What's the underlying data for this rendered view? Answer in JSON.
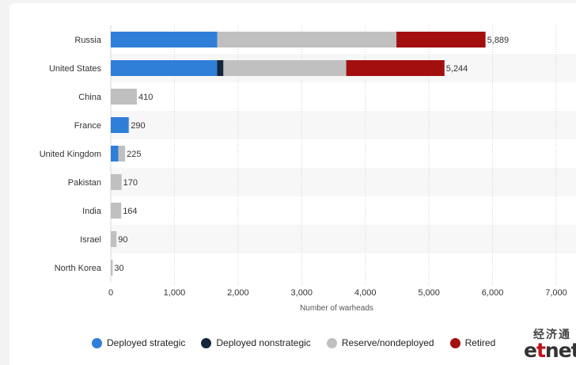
{
  "chart_data": {
    "type": "bar",
    "orientation": "horizontal",
    "stacked": true,
    "categories": [
      "Russia",
      "United States",
      "China",
      "France",
      "United Kingdom",
      "Pakistan",
      "India",
      "Israel",
      "North Korea"
    ],
    "series": [
      {
        "name": "Deployed strategic",
        "color": "#2f7ed8",
        "values": [
          1674,
          1670,
          0,
          280,
          120,
          0,
          0,
          0,
          0
        ]
      },
      {
        "name": "Deployed nonstrategic",
        "color": "#13263a",
        "values": [
          0,
          100,
          0,
          0,
          0,
          0,
          0,
          0,
          0
        ]
      },
      {
        "name": "Reserve/nondeployed",
        "color": "#c0c0c0",
        "values": [
          2815,
          1930,
          410,
          10,
          105,
          170,
          164,
          90,
          30
        ]
      },
      {
        "name": "Retired",
        "color": "#a30f0f",
        "values": [
          1400,
          1544,
          0,
          0,
          0,
          0,
          0,
          0,
          0
        ]
      }
    ],
    "totals_display": [
      "5,889",
      "5,244",
      "410",
      "290",
      "225",
      "170",
      "164",
      "90",
      "30"
    ],
    "xlabel": "Number of warheads",
    "ylabel": "",
    "xlim": [
      0,
      7000
    ],
    "x_ticks": [
      0,
      1000,
      2000,
      3000,
      4000,
      5000,
      6000,
      7000
    ],
    "x_tick_labels": [
      "0",
      "1,000",
      "2,000",
      "3,000",
      "4,000",
      "5,000",
      "6,000",
      "7,000"
    ],
    "grid": true,
    "legend_position": "bottom"
  },
  "legend": [
    {
      "label": "Deployed strategic",
      "color": "#2f7ed8"
    },
    {
      "label": "Deployed nonstrategic",
      "color": "#13263a"
    },
    {
      "label": "Reserve/nondeployed",
      "color": "#c0c0c0"
    },
    {
      "label": "Retired",
      "color": "#a30f0f"
    }
  ],
  "watermark": {
    "cn": "经济通",
    "en_prefix": "e",
    "en_accent": "t",
    "en_suffix": "net"
  }
}
